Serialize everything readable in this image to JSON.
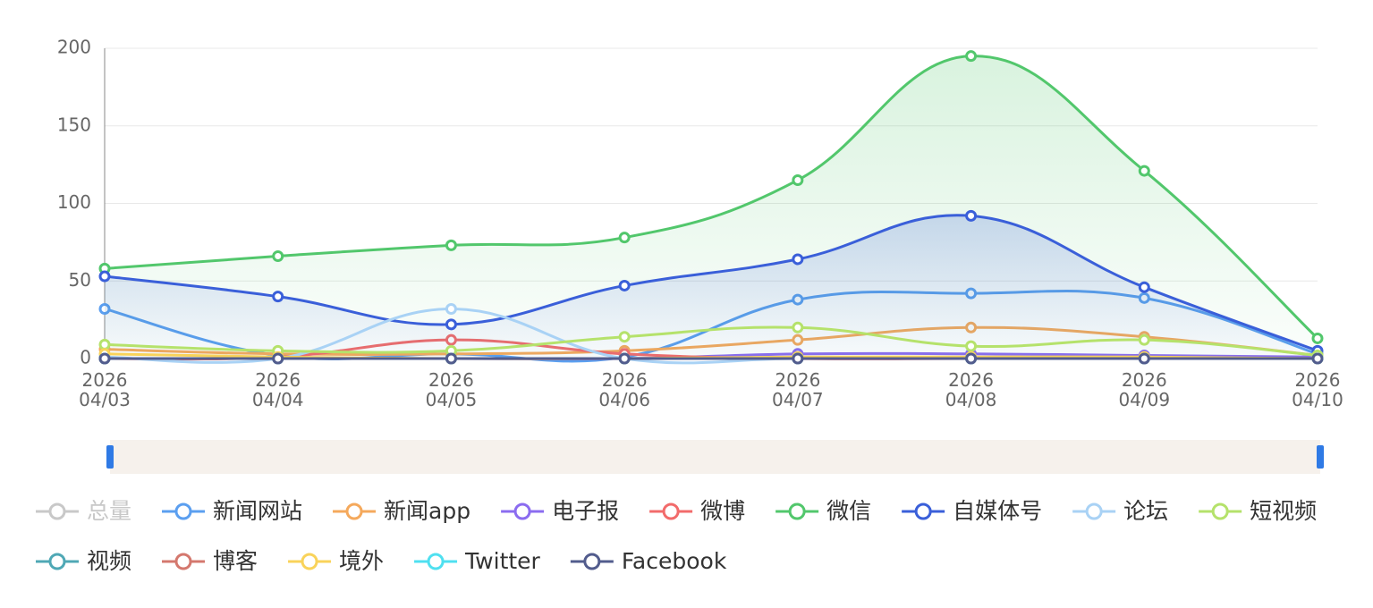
{
  "chart_data": {
    "type": "line",
    "smooth": true,
    "categories": [
      "2026\n04/03",
      "2026\n04/04",
      "2026\n04/05",
      "2026\n04/06",
      "2026\n04/07",
      "2026\n04/08",
      "2026\n04/09",
      "2026\n04/10"
    ],
    "ylim": [
      0,
      200
    ],
    "yticks": [
      0,
      50,
      100,
      150,
      200
    ],
    "grid": true,
    "series": [
      {
        "name": "总量",
        "color": "#c8c8c8",
        "visible": false,
        "values": [
          null,
          null,
          null,
          null,
          null,
          null,
          null,
          null
        ]
      },
      {
        "name": "新闻网站",
        "color": "#5b9ff0",
        "values": [
          32,
          2,
          3,
          1,
          38,
          42,
          39,
          3
        ]
      },
      {
        "name": "新闻app",
        "color": "#f5a95c",
        "values": [
          6,
          3,
          3,
          5,
          12,
          20,
          14,
          2
        ]
      },
      {
        "name": "电子报",
        "color": "#8b6cf0",
        "values": [
          0,
          0,
          0,
          0,
          3,
          3,
          2,
          1
        ]
      },
      {
        "name": "微博",
        "color": "#f26b6b",
        "values": [
          0,
          1,
          12,
          3,
          0,
          0,
          0,
          0
        ]
      },
      {
        "name": "微信",
        "color": "#52c76c",
        "area": true,
        "values": [
          58,
          66,
          73,
          78,
          115,
          195,
          121,
          13
        ]
      },
      {
        "name": "自媒体号",
        "color": "#3a5fd9",
        "area": true,
        "values": [
          53,
          40,
          22,
          47,
          64,
          92,
          46,
          5
        ]
      },
      {
        "name": "论坛",
        "color": "#a9d2f5",
        "values": [
          1,
          0,
          32,
          0,
          0,
          0,
          0,
          0
        ]
      },
      {
        "name": "短视频",
        "color": "#b5e26b",
        "values": [
          9,
          5,
          5,
          14,
          20,
          8,
          12,
          2
        ]
      },
      {
        "name": "视频",
        "color": "#4fa8b5",
        "values": [
          0,
          0,
          0,
          0,
          0,
          0,
          0,
          0
        ]
      },
      {
        "name": "博客",
        "color": "#d4786e",
        "values": [
          0,
          0,
          0,
          0,
          0,
          0,
          0,
          0
        ]
      },
      {
        "name": "境外",
        "color": "#f9d35a",
        "values": [
          3,
          1,
          0,
          0,
          1,
          1,
          1,
          0
        ]
      },
      {
        "name": "Twitter",
        "color": "#4fe0f0",
        "values": [
          0,
          0,
          0,
          0,
          0,
          0,
          0,
          0
        ]
      },
      {
        "name": "Facebook",
        "color": "#525c8d",
        "values": [
          0,
          0,
          0,
          0,
          0,
          0,
          0,
          0
        ]
      }
    ]
  }
}
